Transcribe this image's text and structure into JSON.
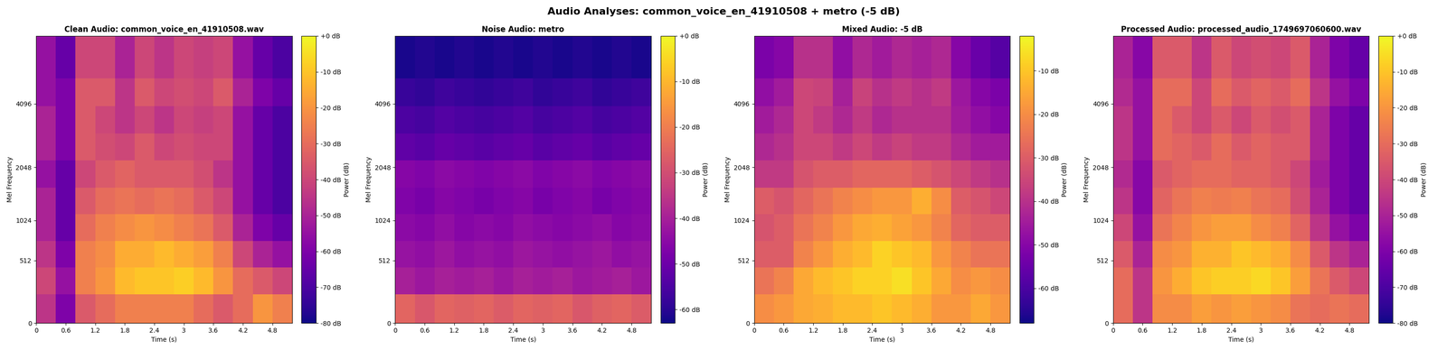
{
  "title": "Audio Analyses: common_voice_en_41910508 + metro (-5 dB)",
  "chart_data": [
    {
      "type": "heatmap",
      "title": "Clean Audio: common_voice_en_41910508.wav",
      "x_label": "Time (s)",
      "y_label": "Mel Frequency",
      "xlim": [
        0,
        5.2
      ],
      "xticks": [
        0,
        0.6,
        1.2,
        1.8,
        2.4,
        3,
        3.6,
        4.2,
        4.8
      ],
      "ylim": [
        0,
        8000
      ],
      "yticks": [
        0,
        512,
        1024,
        2048,
        4096
      ],
      "time_edges": [
        0,
        0.4,
        0.8,
        1.2,
        1.6,
        2.0,
        2.4,
        2.8,
        3.2,
        3.6,
        4.0,
        4.4,
        4.8,
        5.2
      ],
      "freq_edges": [
        0,
        200,
        440,
        740,
        1120,
        1600,
        2220,
        3000,
        4000,
        5300,
        8000
      ],
      "cells": [
        [
          -45,
          -60,
          -35,
          -30,
          -25,
          -25,
          -25,
          -25,
          -30,
          -35,
          -30,
          -20,
          -25
        ],
        [
          -40,
          -55,
          -25,
          -20,
          -12,
          -10,
          -10,
          -8,
          -12,
          -20,
          -30,
          -35,
          -40
        ],
        [
          -45,
          -60,
          -25,
          -22,
          -15,
          -15,
          -12,
          -15,
          -18,
          -25,
          -40,
          -50,
          -55
        ],
        [
          -50,
          -65,
          -30,
          -25,
          -22,
          -20,
          -22,
          -25,
          -28,
          -35,
          -50,
          -60,
          -65
        ],
        [
          -50,
          -65,
          -35,
          -30,
          -28,
          -30,
          -28,
          -30,
          -35,
          -40,
          -55,
          -65,
          -70
        ],
        [
          -55,
          -65,
          -40,
          -35,
          -32,
          -35,
          -35,
          -35,
          -38,
          -45,
          -55,
          -65,
          -70
        ],
        [
          -50,
          -60,
          -35,
          -38,
          -40,
          -35,
          -40,
          -38,
          -40,
          -40,
          -55,
          -65,
          -70
        ],
        [
          -50,
          -60,
          -35,
          -40,
          -45,
          -40,
          -45,
          -40,
          -42,
          -40,
          -55,
          -65,
          -70
        ],
        [
          -55,
          -60,
          -35,
          -35,
          -45,
          -35,
          -40,
          -38,
          -40,
          -35,
          -50,
          -60,
          -65
        ],
        [
          -55,
          -65,
          -40,
          -40,
          -50,
          -40,
          -45,
          -40,
          -42,
          -40,
          -55,
          -65,
          -70
        ]
      ],
      "colorbar_label": "Power (dB)",
      "color_range": [
        -80,
        0
      ],
      "color_ticks": [
        {
          "value": -80,
          "label": "-80 dB"
        },
        {
          "value": -70,
          "label": "-70 dB"
        },
        {
          "value": -60,
          "label": "-60 dB"
        },
        {
          "value": -50,
          "label": "-50 dB"
        },
        {
          "value": -40,
          "label": "-40 dB"
        },
        {
          "value": -30,
          "label": "-30 dB"
        },
        {
          "value": -20,
          "label": "-20 dB"
        },
        {
          "value": -10,
          "label": "-10 dB"
        },
        {
          "value": 0,
          "label": "+0 dB"
        }
      ]
    },
    {
      "type": "heatmap",
      "title": "Noise Audio: metro",
      "x_label": "Time (s)",
      "y_label": "Mel Frequency",
      "xlim": [
        0,
        5.2
      ],
      "xticks": [
        0,
        0.6,
        1.2,
        1.8,
        2.4,
        3,
        3.6,
        4.2,
        4.8
      ],
      "ylim": [
        0,
        8000
      ],
      "yticks": [
        0,
        512,
        1024,
        2048,
        4096
      ],
      "time_edges": [
        0,
        0.4,
        0.8,
        1.2,
        1.6,
        2.0,
        2.4,
        2.8,
        3.2,
        3.6,
        4.0,
        4.4,
        4.8,
        5.2
      ],
      "freq_edges": [
        0,
        200,
        440,
        740,
        1120,
        1600,
        2220,
        3000,
        4000,
        5300,
        8000
      ],
      "cells": [
        [
          -25,
          -28,
          -25,
          -26,
          -25,
          -27,
          -25,
          -26,
          -25,
          -28,
          -26,
          -25,
          -27
        ],
        [
          -40,
          -42,
          -40,
          -41,
          -40,
          -42,
          -40,
          -41,
          -40,
          -42,
          -41,
          -40,
          -42
        ],
        [
          -43,
          -44,
          -42,
          -44,
          -43,
          -44,
          -42,
          -43,
          -44,
          -43,
          -42,
          -44,
          -43
        ],
        [
          -45,
          -46,
          -44,
          -46,
          -45,
          -46,
          -44,
          -45,
          -46,
          -45,
          -44,
          -46,
          -45
        ],
        [
          -47,
          -48,
          -46,
          -47,
          -48,
          -47,
          -46,
          -48,
          -47,
          -46,
          -48,
          -47,
          -46
        ],
        [
          -46,
          -47,
          -45,
          -46,
          -47,
          -46,
          -45,
          -47,
          -46,
          -45,
          -47,
          -46,
          -45
        ],
        [
          -52,
          -53,
          -51,
          -52,
          -53,
          -52,
          -51,
          -53,
          -52,
          -51,
          -53,
          -52,
          -51
        ],
        [
          -55,
          -56,
          -54,
          -55,
          -56,
          -55,
          -54,
          -56,
          -55,
          -54,
          -56,
          -55,
          -54
        ],
        [
          -58,
          -59,
          -57,
          -58,
          -59,
          -58,
          -57,
          -59,
          -58,
          -57,
          -59,
          -58,
          -57
        ],
        [
          -62,
          -61,
          -62,
          -61,
          -62,
          -61,
          -62,
          -61,
          -62,
          -61,
          -62,
          -61,
          -62
        ]
      ],
      "colorbar_label": "Power (dB)",
      "color_range": [
        -63,
        0
      ],
      "color_ticks": [
        {
          "value": -60,
          "label": "-60 dB"
        },
        {
          "value": -50,
          "label": "-50 dB"
        },
        {
          "value": -40,
          "label": "-40 dB"
        },
        {
          "value": -30,
          "label": "-30 dB"
        },
        {
          "value": -20,
          "label": "-20 dB"
        },
        {
          "value": -10,
          "label": "-10 dB"
        },
        {
          "value": 0,
          "label": "+0 dB"
        }
      ]
    },
    {
      "type": "heatmap",
      "title": "Mixed Audio: -5 dB",
      "x_label": "Time (s)",
      "y_label": "Mel Frequency",
      "xlim": [
        0,
        5.2
      ],
      "xticks": [
        0,
        0.6,
        1.2,
        1.8,
        2.4,
        3,
        3.6,
        4.2,
        4.8
      ],
      "ylim": [
        0,
        8000
      ],
      "yticks": [
        0,
        512,
        1024,
        2048,
        4096
      ],
      "time_edges": [
        0,
        0.4,
        0.8,
        1.2,
        1.6,
        2.0,
        2.4,
        2.8,
        3.2,
        3.6,
        4.0,
        4.4,
        4.8,
        5.2
      ],
      "freq_edges": [
        0,
        200,
        440,
        740,
        1120,
        1600,
        2220,
        3000,
        4000,
        5300,
        8000
      ],
      "cells": [
        [
          -20,
          -18,
          -15,
          -14,
          -12,
          -12,
          -10,
          -12,
          -14,
          -18,
          -18,
          -15,
          -18
        ],
        [
          -25,
          -22,
          -15,
          -12,
          -10,
          -8,
          -8,
          -6,
          -10,
          -15,
          -20,
          -18,
          -20
        ],
        [
          -30,
          -30,
          -22,
          -18,
          -14,
          -12,
          -8,
          -10,
          -12,
          -18,
          -22,
          -25,
          -25
        ],
        [
          -32,
          -30,
          -25,
          -22,
          -18,
          -15,
          -14,
          -16,
          -18,
          -22,
          -28,
          -30,
          -30
        ],
        [
          -30,
          -32,
          -28,
          -25,
          -22,
          -20,
          -18,
          -18,
          -14,
          -20,
          -30,
          -32,
          -35
        ],
        [
          -38,
          -38,
          -32,
          -30,
          -30,
          -28,
          -28,
          -28,
          -30,
          -32,
          -35,
          -38,
          -40
        ],
        [
          -42,
          -40,
          -35,
          -35,
          -38,
          -35,
          -38,
          -36,
          -38,
          -38,
          -42,
          -45,
          -45
        ],
        [
          -45,
          -42,
          -35,
          -38,
          -42,
          -38,
          -42,
          -40,
          -40,
          -40,
          -45,
          -48,
          -50
        ],
        [
          -48,
          -45,
          -35,
          -36,
          -44,
          -36,
          -40,
          -38,
          -40,
          -38,
          -46,
          -50,
          -52
        ],
        [
          -52,
          -50,
          -40,
          -40,
          -48,
          -42,
          -45,
          -42,
          -44,
          -42,
          -50,
          -55,
          -58
        ]
      ],
      "colorbar_label": "Power (dB)",
      "color_range": [
        -68,
        -2
      ],
      "color_ticks": [
        {
          "value": -60,
          "label": "-60 dB"
        },
        {
          "value": -50,
          "label": "-50 dB"
        },
        {
          "value": -40,
          "label": "-40 dB"
        },
        {
          "value": -30,
          "label": "-30 dB"
        },
        {
          "value": -20,
          "label": "-20 dB"
        },
        {
          "value": -10,
          "label": "-10 dB"
        }
      ]
    },
    {
      "type": "heatmap",
      "title": "Processed Audio: processed_audio_1749697060600.wav",
      "x_label": "Time (s)",
      "y_label": "Mel Frequency",
      "xlim": [
        0,
        5.2
      ],
      "xticks": [
        0,
        0.6,
        1.2,
        1.8,
        2.4,
        3,
        3.6,
        4.2,
        4.8
      ],
      "ylim": [
        0,
        8000
      ],
      "yticks": [
        0,
        512,
        1024,
        2048,
        4096
      ],
      "time_edges": [
        0,
        0.4,
        0.8,
        1.2,
        1.6,
        2.0,
        2.4,
        2.8,
        3.2,
        3.6,
        4.0,
        4.4,
        4.8,
        5.2
      ],
      "freq_edges": [
        0,
        200,
        440,
        740,
        1120,
        1600,
        2220,
        3000,
        4000,
        5300,
        8000
      ],
      "cells": [
        [
          -30,
          -45,
          -22,
          -22,
          -18,
          -20,
          -18,
          -20,
          -22,
          -28,
          -30,
          -28,
          -30
        ],
        [
          -30,
          -45,
          -20,
          -15,
          -10,
          -8,
          -8,
          -6,
          -10,
          -18,
          -28,
          -35,
          -40
        ],
        [
          -35,
          -50,
          -22,
          -20,
          -14,
          -14,
          -10,
          -12,
          -15,
          -22,
          -35,
          -45,
          -50
        ],
        [
          -40,
          -55,
          -28,
          -24,
          -20,
          -18,
          -18,
          -22,
          -25,
          -32,
          -45,
          -55,
          -60
        ],
        [
          -45,
          -58,
          -32,
          -28,
          -25,
          -26,
          -25,
          -28,
          -30,
          -38,
          -50,
          -60,
          -65
        ],
        [
          -48,
          -58,
          -35,
          -32,
          -30,
          -30,
          -32,
          -32,
          -35,
          -40,
          -52,
          -60,
          -65
        ],
        [
          -45,
          -55,
          -30,
          -32,
          -35,
          -30,
          -35,
          -32,
          -35,
          -35,
          -50,
          -60,
          -65
        ],
        [
          -45,
          -55,
          -30,
          -35,
          -40,
          -35,
          -40,
          -35,
          -38,
          -35,
          -50,
          -60,
          -65
        ],
        [
          -48,
          -55,
          -30,
          -30,
          -40,
          -30,
          -35,
          -32,
          -35,
          -30,
          -45,
          -55,
          -60
        ],
        [
          -50,
          -58,
          -35,
          -35,
          -45,
          -35,
          -40,
          -38,
          -40,
          -35,
          -50,
          -60,
          -65
        ]
      ],
      "colorbar_label": "Power (dB)",
      "color_range": [
        -80,
        0
      ],
      "color_ticks": [
        {
          "value": -80,
          "label": "-80 dB"
        },
        {
          "value": -70,
          "label": "-70 dB"
        },
        {
          "value": -60,
          "label": "-60 dB"
        },
        {
          "value": -50,
          "label": "-50 dB"
        },
        {
          "value": -40,
          "label": "-40 dB"
        },
        {
          "value": -30,
          "label": "-30 dB"
        },
        {
          "value": -20,
          "label": "-20 dB"
        },
        {
          "value": -10,
          "label": "-10 dB"
        },
        {
          "value": 0,
          "label": "+0 dB"
        }
      ]
    }
  ]
}
